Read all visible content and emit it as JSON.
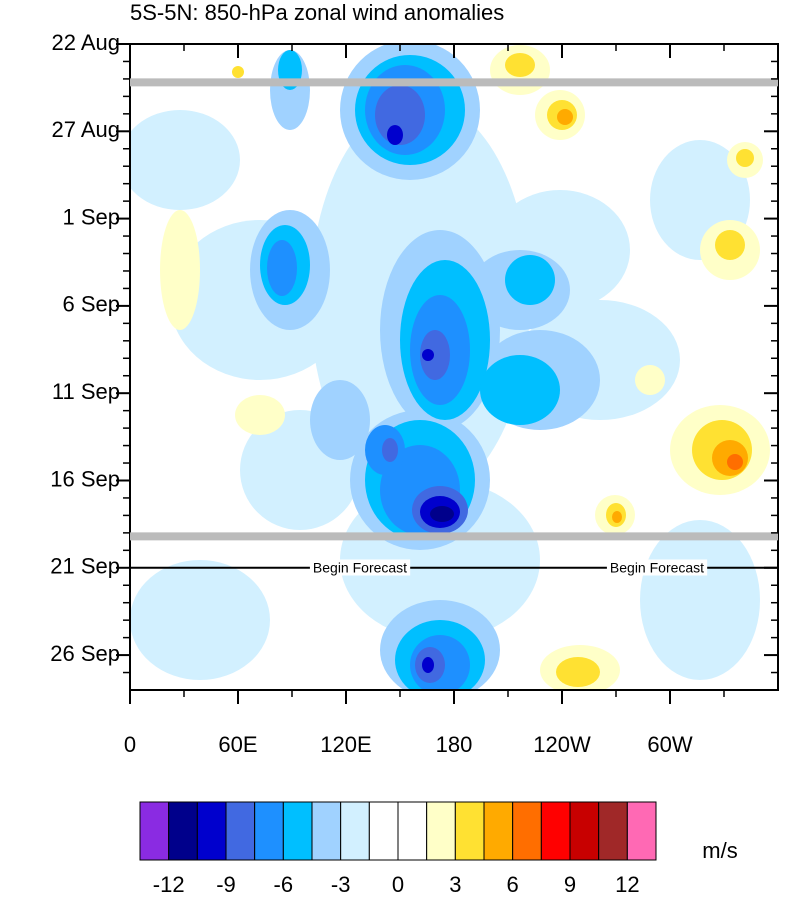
{
  "chart_data": {
    "type": "contour",
    "title": "5S-5N: 850-hPa zonal wind anomalies",
    "xlim": [
      0,
      360
    ],
    "xticks": [
      0,
      {
        "value": 60,
        "label": "60E"
      },
      {
        "value": 120,
        "label": "120E"
      },
      180,
      {
        "value": 240,
        "label": "120W"
      },
      {
        "value": 300,
        "label": "60W"
      }
    ],
    "ylim": [
      0,
      37
    ],
    "yticks": [
      {
        "value": 0,
        "label": "22 Aug"
      },
      {
        "value": 5,
        "label": "27 Aug"
      },
      {
        "value": 10,
        "label": "1 Sep"
      },
      {
        "value": 15,
        "label": "6 Sep"
      },
      {
        "value": 20,
        "label": "11 Sep"
      },
      {
        "value": 25,
        "label": "16 Sep"
      },
      {
        "value": 30,
        "label": "21 Sep"
      },
      {
        "value": 35,
        "label": "26 Sep"
      }
    ],
    "highlight_lines": [
      2.2,
      28.2
    ],
    "forecast_line": 30,
    "annotations": [
      "Begin Forecast",
      "Begin Forecast"
    ],
    "colorbar": {
      "label": "m/s",
      "levels": [
        -12,
        -10.5,
        -9,
        -7.5,
        -6,
        -4.5,
        -3,
        -1.5,
        0,
        1.5,
        3,
        4.5,
        6,
        7.5,
        9,
        10.5,
        12
      ],
      "ticks": [
        -12,
        -9,
        -6,
        -3,
        0,
        3,
        6,
        9,
        12
      ],
      "colors": [
        "#8a2be2",
        "#00008b",
        "#0000cd",
        "#4169e1",
        "#1e90ff",
        "#00bfff",
        "#a0d2ff",
        "#d2f0ff",
        "#ffffff",
        "#ffffff",
        "#ffffc8",
        "#ffe132",
        "#ffaa00",
        "#ff6e00",
        "#ff0000",
        "#c80000",
        "#a02828",
        "#ff69b4"
      ]
    }
  }
}
